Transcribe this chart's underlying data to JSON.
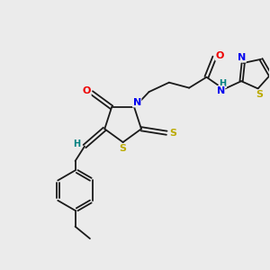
{
  "bg_color": "#ebebeb",
  "bond_color": "#1a1a1a",
  "atom_colors": {
    "N": "#0000ee",
    "O": "#ee0000",
    "S": "#bbaa00",
    "H": "#008080",
    "C": "#1a1a1a"
  },
  "font_size": 8,
  "fig_size": [
    3.0,
    3.0
  ],
  "dpi": 100
}
